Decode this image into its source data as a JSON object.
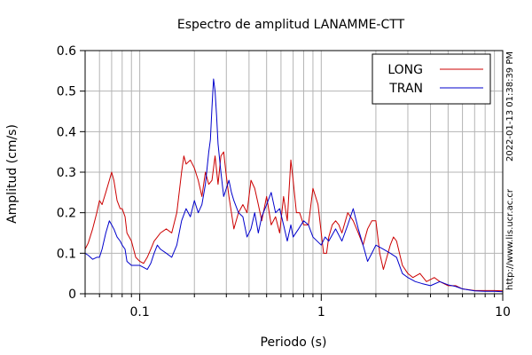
{
  "chart_data": {
    "type": "line",
    "title": "Espectro de amplitud LANAMME-CTT",
    "xlabel": "Periodo (s)",
    "ylabel": "Amplitud (cm/s)",
    "x_scale": "log",
    "xlim": [
      0.05,
      10
    ],
    "ylim": [
      0,
      0.6
    ],
    "x_ticks": [
      {
        "value": 0.1,
        "label": "0.1"
      },
      {
        "value": 1,
        "label": "1"
      },
      {
        "value": 10,
        "label": "10"
      }
    ],
    "y_ticks": [
      {
        "value": 0,
        "label": "0"
      },
      {
        "value": 0.1,
        "label": "0.1"
      },
      {
        "value": 0.2,
        "label": "0.2"
      },
      {
        "value": 0.3,
        "label": "0.3"
      },
      {
        "value": 0.4,
        "label": "0.4"
      },
      {
        "value": 0.5,
        "label": "0.5"
      },
      {
        "value": 0.6,
        "label": "0.6"
      }
    ],
    "grid": true,
    "legend_position": "top-right",
    "series": [
      {
        "name": "LONG",
        "color": "#cc0000",
        "points": [
          [
            0.05,
            0.11
          ],
          [
            0.052,
            0.125
          ],
          [
            0.055,
            0.16
          ],
          [
            0.058,
            0.2
          ],
          [
            0.06,
            0.23
          ],
          [
            0.062,
            0.22
          ],
          [
            0.065,
            0.25
          ],
          [
            0.068,
            0.28
          ],
          [
            0.07,
            0.3
          ],
          [
            0.072,
            0.28
          ],
          [
            0.075,
            0.23
          ],
          [
            0.078,
            0.21
          ],
          [
            0.08,
            0.21
          ],
          [
            0.083,
            0.19
          ],
          [
            0.085,
            0.15
          ],
          [
            0.09,
            0.13
          ],
          [
            0.095,
            0.09
          ],
          [
            0.1,
            0.08
          ],
          [
            0.105,
            0.075
          ],
          [
            0.11,
            0.09
          ],
          [
            0.115,
            0.11
          ],
          [
            0.12,
            0.13
          ],
          [
            0.125,
            0.14
          ],
          [
            0.13,
            0.15
          ],
          [
            0.14,
            0.16
          ],
          [
            0.15,
            0.15
          ],
          [
            0.16,
            0.2
          ],
          [
            0.17,
            0.3
          ],
          [
            0.175,
            0.34
          ],
          [
            0.18,
            0.32
          ],
          [
            0.19,
            0.33
          ],
          [
            0.2,
            0.31
          ],
          [
            0.21,
            0.28
          ],
          [
            0.22,
            0.24
          ],
          [
            0.23,
            0.3
          ],
          [
            0.24,
            0.27
          ],
          [
            0.25,
            0.28
          ],
          [
            0.26,
            0.34
          ],
          [
            0.27,
            0.27
          ],
          [
            0.28,
            0.34
          ],
          [
            0.29,
            0.35
          ],
          [
            0.3,
            0.29
          ],
          [
            0.31,
            0.24
          ],
          [
            0.32,
            0.2
          ],
          [
            0.33,
            0.16
          ],
          [
            0.35,
            0.2
          ],
          [
            0.37,
            0.22
          ],
          [
            0.39,
            0.2
          ],
          [
            0.41,
            0.28
          ],
          [
            0.43,
            0.26
          ],
          [
            0.45,
            0.22
          ],
          [
            0.47,
            0.18
          ],
          [
            0.5,
            0.24
          ],
          [
            0.53,
            0.17
          ],
          [
            0.56,
            0.19
          ],
          [
            0.59,
            0.15
          ],
          [
            0.62,
            0.24
          ],
          [
            0.65,
            0.18
          ],
          [
            0.68,
            0.33
          ],
          [
            0.7,
            0.28
          ],
          [
            0.73,
            0.2
          ],
          [
            0.76,
            0.2
          ],
          [
            0.8,
            0.17
          ],
          [
            0.85,
            0.17
          ],
          [
            0.9,
            0.26
          ],
          [
            0.93,
            0.24
          ],
          [
            0.96,
            0.22
          ],
          [
            1.0,
            0.15
          ],
          [
            1.03,
            0.1
          ],
          [
            1.07,
            0.1
          ],
          [
            1.1,
            0.14
          ],
          [
            1.15,
            0.17
          ],
          [
            1.2,
            0.18
          ],
          [
            1.25,
            0.17
          ],
          [
            1.3,
            0.15
          ],
          [
            1.4,
            0.2
          ],
          [
            1.5,
            0.18
          ],
          [
            1.6,
            0.15
          ],
          [
            1.7,
            0.12
          ],
          [
            1.8,
            0.16
          ],
          [
            1.9,
            0.18
          ],
          [
            2.0,
            0.18
          ],
          [
            2.1,
            0.1
          ],
          [
            2.2,
            0.06
          ],
          [
            2.4,
            0.12
          ],
          [
            2.5,
            0.14
          ],
          [
            2.6,
            0.13
          ],
          [
            2.8,
            0.07
          ],
          [
            3.0,
            0.05
          ],
          [
            3.2,
            0.04
          ],
          [
            3.5,
            0.05
          ],
          [
            3.8,
            0.03
          ],
          [
            4.2,
            0.04
          ],
          [
            4.5,
            0.03
          ],
          [
            5,
            0.02
          ],
          [
            5.5,
            0.02
          ],
          [
            6,
            0.012
          ],
          [
            7,
            0.008
          ],
          [
            8,
            0.008
          ],
          [
            9,
            0.008
          ],
          [
            10,
            0.007
          ]
        ]
      },
      {
        "name": "TRAN",
        "color": "#0000cc",
        "points": [
          [
            0.05,
            0.1
          ],
          [
            0.052,
            0.095
          ],
          [
            0.055,
            0.085
          ],
          [
            0.058,
            0.09
          ],
          [
            0.06,
            0.09
          ],
          [
            0.062,
            0.11
          ],
          [
            0.065,
            0.15
          ],
          [
            0.068,
            0.18
          ],
          [
            0.07,
            0.17
          ],
          [
            0.072,
            0.16
          ],
          [
            0.075,
            0.14
          ],
          [
            0.078,
            0.13
          ],
          [
            0.08,
            0.12
          ],
          [
            0.083,
            0.11
          ],
          [
            0.085,
            0.08
          ],
          [
            0.09,
            0.07
          ],
          [
            0.095,
            0.07
          ],
          [
            0.1,
            0.07
          ],
          [
            0.105,
            0.065
          ],
          [
            0.11,
            0.06
          ],
          [
            0.115,
            0.075
          ],
          [
            0.12,
            0.1
          ],
          [
            0.125,
            0.12
          ],
          [
            0.13,
            0.11
          ],
          [
            0.14,
            0.1
          ],
          [
            0.15,
            0.09
          ],
          [
            0.16,
            0.12
          ],
          [
            0.17,
            0.18
          ],
          [
            0.18,
            0.21
          ],
          [
            0.19,
            0.19
          ],
          [
            0.2,
            0.23
          ],
          [
            0.21,
            0.2
          ],
          [
            0.22,
            0.22
          ],
          [
            0.23,
            0.27
          ],
          [
            0.24,
            0.35
          ],
          [
            0.245,
            0.38
          ],
          [
            0.25,
            0.46
          ],
          [
            0.255,
            0.53
          ],
          [
            0.26,
            0.5
          ],
          [
            0.265,
            0.44
          ],
          [
            0.27,
            0.37
          ],
          [
            0.28,
            0.3
          ],
          [
            0.29,
            0.24
          ],
          [
            0.3,
            0.26
          ],
          [
            0.31,
            0.28
          ],
          [
            0.32,
            0.25
          ],
          [
            0.33,
            0.23
          ],
          [
            0.35,
            0.2
          ],
          [
            0.37,
            0.19
          ],
          [
            0.39,
            0.14
          ],
          [
            0.41,
            0.16
          ],
          [
            0.43,
            0.2
          ],
          [
            0.45,
            0.15
          ],
          [
            0.47,
            0.19
          ],
          [
            0.5,
            0.22
          ],
          [
            0.53,
            0.25
          ],
          [
            0.56,
            0.2
          ],
          [
            0.59,
            0.21
          ],
          [
            0.62,
            0.17
          ],
          [
            0.65,
            0.13
          ],
          [
            0.68,
            0.17
          ],
          [
            0.7,
            0.14
          ],
          [
            0.75,
            0.16
          ],
          [
            0.8,
            0.18
          ],
          [
            0.85,
            0.17
          ],
          [
            0.9,
            0.14
          ],
          [
            1.0,
            0.12
          ],
          [
            1.05,
            0.14
          ],
          [
            1.1,
            0.13
          ],
          [
            1.2,
            0.16
          ],
          [
            1.3,
            0.13
          ],
          [
            1.4,
            0.17
          ],
          [
            1.5,
            0.21
          ],
          [
            1.6,
            0.16
          ],
          [
            1.7,
            0.12
          ],
          [
            1.8,
            0.08
          ],
          [
            1.9,
            0.1
          ],
          [
            2.0,
            0.12
          ],
          [
            2.2,
            0.11
          ],
          [
            2.4,
            0.1
          ],
          [
            2.6,
            0.09
          ],
          [
            2.8,
            0.05
          ],
          [
            3.0,
            0.04
          ],
          [
            3.3,
            0.03
          ],
          [
            3.6,
            0.025
          ],
          [
            4,
            0.02
          ],
          [
            4.5,
            0.03
          ],
          [
            5,
            0.022
          ],
          [
            5.5,
            0.018
          ],
          [
            6,
            0.012
          ],
          [
            7,
            0.007
          ],
          [
            8,
            0.006
          ],
          [
            9,
            0.006
          ],
          [
            10,
            0.005
          ]
        ]
      }
    ],
    "side_text_top": "2022-01-13 01:38:39 PM",
    "side_text_bottom": "http://www.lis.ucr.ac.cr"
  }
}
